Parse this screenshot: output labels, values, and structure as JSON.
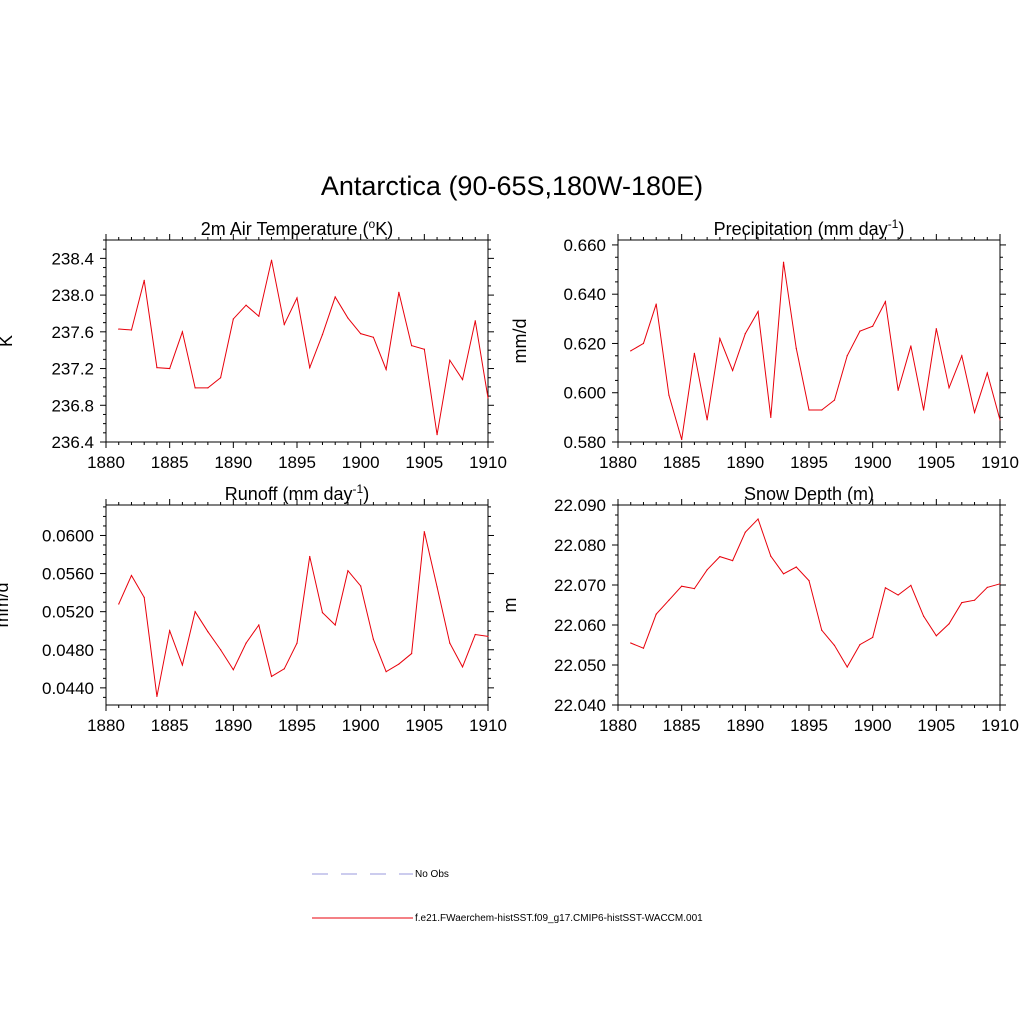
{
  "title": "Antarctica (90-65S,180W-180E)",
  "line_color": "#e8000b",
  "legend": {
    "items": [
      {
        "label": "No Obs",
        "style": "dashed",
        "color": "#9999dd"
      },
      {
        "label": "f.e21.FWaerchem-histSST.f09_g17.CMIP6-histSST-WACCM.001",
        "style": "solid",
        "color": "#e8000b"
      }
    ]
  },
  "chart_data": [
    {
      "type": "line",
      "title": "2m Air Temperature (",
      "title_sup": "o",
      "title_end": "K)",
      "ylabel": "K",
      "xlim": [
        1880,
        1910
      ],
      "ylim": [
        236.4,
        238.6
      ],
      "xticks": [
        1880,
        1885,
        1890,
        1895,
        1900,
        1905,
        1910
      ],
      "yticks": [
        236.4,
        236.8,
        237.2,
        237.6,
        238.0,
        238.4
      ],
      "ydecimals": 1,
      "x": [
        1881,
        1882,
        1883,
        1884,
        1885,
        1886,
        1887,
        1888,
        1889,
        1890,
        1891,
        1892,
        1893,
        1894,
        1895,
        1896,
        1897,
        1898,
        1899,
        1900,
        1901,
        1902,
        1903,
        1904,
        1905,
        1906,
        1907,
        1908,
        1909,
        1910
      ],
      "values": [
        237.63,
        237.62,
        238.16,
        237.21,
        237.2,
        237.6,
        236.99,
        236.99,
        237.1,
        237.74,
        237.89,
        237.77,
        238.38,
        237.68,
        237.97,
        237.21,
        237.57,
        237.98,
        237.75,
        237.58,
        237.54,
        237.19,
        238.03,
        237.45,
        237.41,
        236.48,
        237.29,
        237.08,
        237.72,
        236.88
      ]
    },
    {
      "type": "line",
      "title": "Precipitation (mm day",
      "title_sup": "-1",
      "title_end": ")",
      "ylabel": "mm/d",
      "xlim": [
        1880,
        1910
      ],
      "ylim": [
        0.58,
        0.662
      ],
      "xticks": [
        1880,
        1885,
        1890,
        1895,
        1900,
        1905,
        1910
      ],
      "yticks": [
        0.58,
        0.6,
        0.62,
        0.64,
        0.66
      ],
      "ydecimals": 3,
      "x": [
        1881,
        1882,
        1883,
        1884,
        1885,
        1886,
        1887,
        1888,
        1889,
        1890,
        1891,
        1892,
        1893,
        1894,
        1895,
        1896,
        1897,
        1898,
        1899,
        1900,
        1901,
        1902,
        1903,
        1904,
        1905,
        1906,
        1907,
        1908,
        1909,
        1910
      ],
      "values": [
        0.617,
        0.62,
        0.636,
        0.599,
        0.581,
        0.616,
        0.589,
        0.622,
        0.609,
        0.624,
        0.633,
        0.59,
        0.653,
        0.618,
        0.593,
        0.593,
        0.597,
        0.615,
        0.625,
        0.627,
        0.637,
        0.601,
        0.619,
        0.593,
        0.626,
        0.602,
        0.615,
        0.592,
        0.608,
        0.589
      ]
    },
    {
      "type": "line",
      "title": "Runoff (mm day",
      "title_sup": "-1",
      "title_end": ")",
      "ylabel": "mm/d",
      "xlim": [
        1880,
        1910
      ],
      "ylim": [
        0.0422,
        0.0632
      ],
      "xticks": [
        1880,
        1885,
        1890,
        1895,
        1900,
        1905,
        1910
      ],
      "yticks": [
        0.044,
        0.048,
        0.052,
        0.056,
        0.06
      ],
      "ydecimals": 4,
      "x": [
        1881,
        1882,
        1883,
        1884,
        1885,
        1886,
        1887,
        1888,
        1889,
        1890,
        1891,
        1892,
        1893,
        1894,
        1895,
        1896,
        1897,
        1898,
        1899,
        1900,
        1901,
        1902,
        1903,
        1904,
        1905,
        1906,
        1907,
        1908,
        1909,
        1910
      ],
      "values": [
        0.0528,
        0.0558,
        0.0535,
        0.0431,
        0.05,
        0.0464,
        0.052,
        0.0499,
        0.048,
        0.0459,
        0.0487,
        0.0506,
        0.0452,
        0.046,
        0.0487,
        0.0578,
        0.0519,
        0.0506,
        0.0563,
        0.0547,
        0.0491,
        0.0457,
        0.0465,
        0.0476,
        0.0604,
        0.0546,
        0.0487,
        0.0462,
        0.0496,
        0.0494
      ]
    },
    {
      "type": "line",
      "title": "Snow Depth (m)",
      "title_sup": "",
      "title_end": "",
      "ylabel": "m",
      "xlim": [
        1880,
        1910
      ],
      "ylim": [
        22.04,
        22.09
      ],
      "xticks": [
        1880,
        1885,
        1890,
        1895,
        1900,
        1905,
        1910
      ],
      "yticks": [
        22.04,
        22.05,
        22.06,
        22.07,
        22.08,
        22.09
      ],
      "ydecimals": 3,
      "x": [
        1881,
        1882,
        1883,
        1884,
        1885,
        1886,
        1887,
        1888,
        1889,
        1890,
        1891,
        1892,
        1893,
        1894,
        1895,
        1896,
        1897,
        1898,
        1899,
        1900,
        1901,
        1902,
        1903,
        1904,
        1905,
        1906,
        1907,
        1908,
        1909,
        1910
      ],
      "values": [
        22.0555,
        22.0542,
        22.0627,
        22.0662,
        22.0697,
        22.0691,
        22.0738,
        22.0771,
        22.0761,
        22.0832,
        22.0865,
        22.0772,
        22.0728,
        22.0745,
        22.0711,
        22.0587,
        22.0549,
        22.0495,
        22.0551,
        22.0569,
        22.0693,
        22.0675,
        22.0699,
        22.0622,
        22.0573,
        22.0603,
        22.0656,
        22.0662,
        22.0694,
        22.0703
      ]
    }
  ]
}
